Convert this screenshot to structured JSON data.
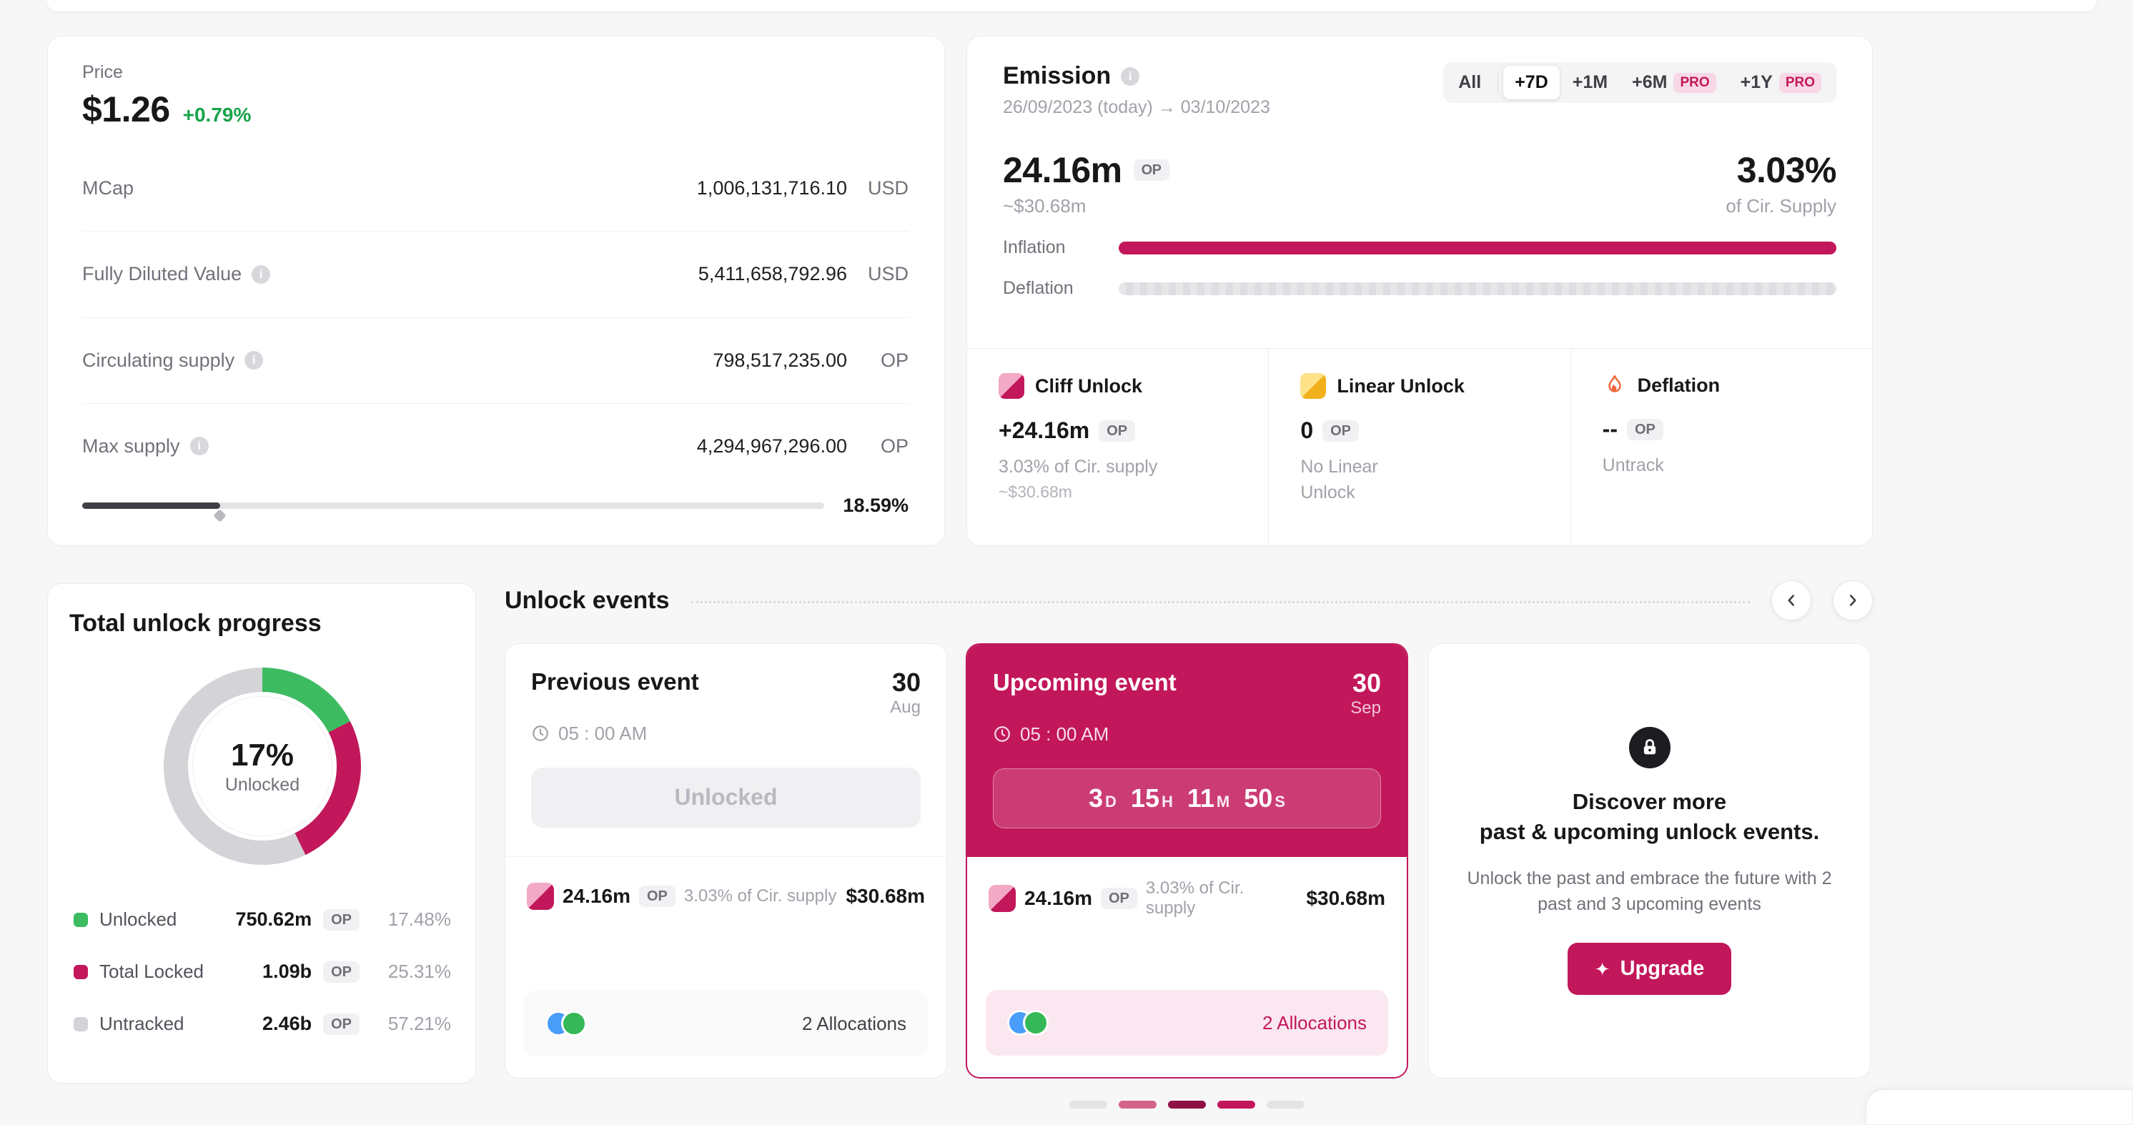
{
  "theme": {
    "accent": "#c2175b",
    "positive_green": "#17a34a",
    "donut_green": "#3dbb61",
    "avatar_blue": "#4a9df8",
    "avatar_green": "#35b857",
    "track_gray": "#e4e4e7",
    "slider_fill": "#3f3f46"
  },
  "price_card": {
    "label": "Price",
    "price": "$1.26",
    "change": "+0.79%",
    "rows": [
      {
        "label": "MCap",
        "value": "1,006,131,716.10",
        "unit": "USD"
      },
      {
        "label": "Fully Diluted Value",
        "value": "5,411,658,792.96",
        "unit": "USD"
      },
      {
        "label": "Circulating supply",
        "value": "798,517,235.00",
        "unit": "OP"
      },
      {
        "label": "Max supply",
        "value": "4,294,967,296.00",
        "unit": "OP"
      }
    ],
    "supply_pct": 18.59,
    "supply_pct_label": "18.59%"
  },
  "emission": {
    "title": "Emission",
    "date_range": "26/09/2023 (today) → 03/10/2023",
    "pro_badge": "PRO",
    "range_buttons": [
      {
        "label": "All",
        "selected": false,
        "pro": false
      },
      {
        "label": "+7D",
        "selected": true,
        "pro": false
      },
      {
        "label": "+1M",
        "selected": false,
        "pro": false
      },
      {
        "label": "+6M",
        "selected": false,
        "pro": true
      },
      {
        "label": "+1Y",
        "selected": false,
        "pro": true
      }
    ],
    "amount": "24.16m",
    "unit": "OP",
    "usd": "~$30.68m",
    "pct": "3.03%",
    "pct_sub": "of Cir. Supply",
    "inflation_label": "Inflation",
    "deflation_label": "Deflation",
    "breakdown": [
      {
        "title": "Cliff Unlock",
        "value": "+24.16m",
        "unit": "OP",
        "sub1": "3.03% of Cir. supply",
        "sub2": "~$30.68m"
      },
      {
        "title": "Linear Unlock",
        "value": "0",
        "unit": "OP",
        "sub1": "No Linear",
        "sub2": "Unlock"
      },
      {
        "title": "Deflation",
        "value": "--",
        "unit": "OP",
        "sub1": "Untrack",
        "sub2": ""
      }
    ]
  },
  "unlock_progress": {
    "title": "Total unlock progress",
    "center_pct": "17%",
    "center_label": "Unlocked",
    "chart": {
      "type": "donut",
      "unlocked": 17.48,
      "locked": 25.31,
      "untracked": 57.21
    },
    "legend": [
      {
        "label": "Unlocked",
        "value": "750.62m",
        "unit": "OP",
        "pct": "17.48%",
        "color": "#3dbb61"
      },
      {
        "label": "Total Locked",
        "value": "1.09b",
        "unit": "OP",
        "pct": "25.31%",
        "color": "#c2175b"
      },
      {
        "label": "Untracked",
        "value": "2.46b",
        "unit": "OP",
        "pct": "57.21%",
        "color": "#d4d4d8"
      }
    ]
  },
  "unlock_events": {
    "title": "Unlock events",
    "previous": {
      "title": "Previous event",
      "day": "30",
      "month": "Aug",
      "time": "05 : 00 AM",
      "status": "Unlocked",
      "amount": "24.16m",
      "unit": "OP",
      "pct": "3.03% of Cir. supply",
      "usd": "$30.68m",
      "allocations": "2 Allocations"
    },
    "upcoming": {
      "title": "Upcoming event",
      "day": "30",
      "month": "Sep",
      "time": "05 : 00 AM",
      "countdown": [
        {
          "value": "3",
          "unit": "D"
        },
        {
          "value": "15",
          "unit": "H"
        },
        {
          "value": "11",
          "unit": "M"
        },
        {
          "value": "50",
          "unit": "S"
        }
      ],
      "amount": "24.16m",
      "unit": "OP",
      "pct": "3.03% of Cir. supply",
      "usd": "$30.68m",
      "allocations": "2 Allocations"
    },
    "discover": {
      "title_line1": "Discover more",
      "title_line2": "past & upcoming unlock events.",
      "desc": "Unlock the past and embrace the future with 2 past and 3 upcoming events",
      "cta": "Upgrade",
      "cta_icon": "✦"
    },
    "pagination": [
      "#e4e4e7",
      "#d4638c",
      "#8f1043",
      "#c2175b",
      "#e4e4e7"
    ]
  }
}
